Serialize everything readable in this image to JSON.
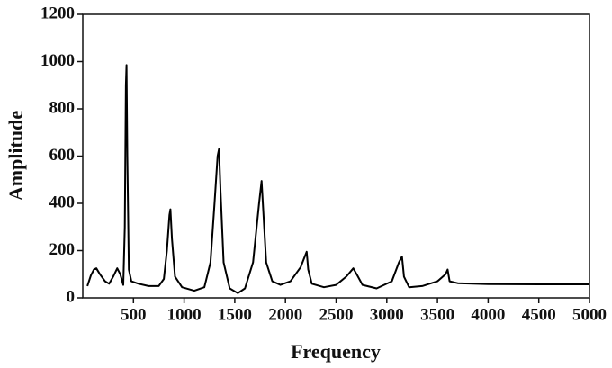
{
  "chart_data": {
    "type": "line",
    "x_label": "Frequency",
    "y_label": "Amplitude",
    "x": [
      45,
      80,
      110,
      134,
      170,
      220,
      260,
      300,
      340,
      370,
      400,
      415,
      425,
      432,
      440,
      455,
      480,
      550,
      650,
      750,
      800,
      830,
      855,
      865,
      880,
      910,
      980,
      1100,
      1200,
      1260,
      1300,
      1330,
      1345,
      1360,
      1390,
      1450,
      1530,
      1600,
      1680,
      1740,
      1765,
      1780,
      1810,
      1870,
      1950,
      2050,
      2150,
      2210,
      2225,
      2260,
      2380,
      2500,
      2600,
      2670,
      2710,
      2760,
      2900,
      3050,
      3120,
      3150,
      3170,
      3220,
      3350,
      3500,
      3580,
      3600,
      3620,
      3700,
      4000,
      4500,
      5000
    ],
    "series": [
      {
        "color": "#000000",
        "values": [
          50,
          95,
          120,
          125,
          100,
          70,
          60,
          90,
          125,
          100,
          55,
          300,
          900,
          985,
          600,
          120,
          70,
          60,
          50,
          50,
          80,
          200,
          350,
          375,
          250,
          90,
          45,
          30,
          45,
          150,
          400,
          600,
          630,
          450,
          150,
          40,
          20,
          40,
          150,
          400,
          495,
          380,
          150,
          70,
          55,
          70,
          130,
          195,
          120,
          60,
          45,
          55,
          90,
          125,
          95,
          55,
          40,
          70,
          150,
          175,
          90,
          45,
          50,
          70,
          100,
          120,
          70,
          62,
          58,
          57,
          57
        ]
      }
    ],
    "xlim": [
      0,
      5000
    ],
    "xticks": [
      500,
      1000,
      1500,
      2000,
      2500,
      3000,
      3500,
      4000,
      4500,
      5000
    ],
    "ylim": [
      0,
      1200
    ],
    "yticks": [
      0,
      200,
      400,
      600,
      800,
      1000,
      1200
    ]
  }
}
